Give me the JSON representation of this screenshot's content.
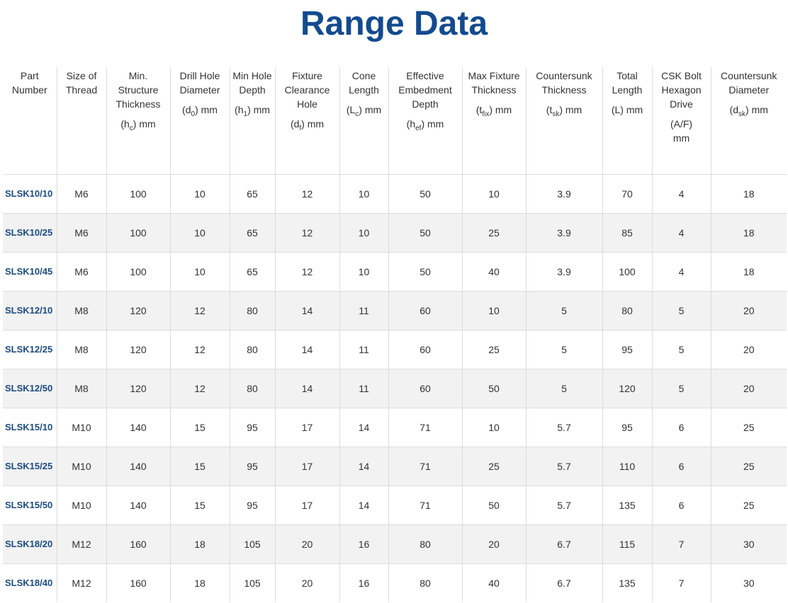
{
  "title": "Range Data",
  "table": {
    "headers": [
      {
        "name": "Part Number"
      },
      {
        "name": "Size of Thread"
      },
      {
        "name": "Min. Structure Thickness",
        "unit": {
          "pre": "(h",
          "sub": "c",
          "post": ") mm"
        }
      },
      {
        "name": "Drill Hole Diameter",
        "unit": {
          "pre": "(d",
          "sub": "0",
          "post": ") mm"
        }
      },
      {
        "name": "Min Hole Depth",
        "unit": {
          "pre": "(h",
          "sub": "1",
          "post": ") mm"
        }
      },
      {
        "name": "Fixture Clearance Hole",
        "unit": {
          "pre": "(d",
          "sub": "f",
          "post": ") mm"
        }
      },
      {
        "name": "Cone Length",
        "unit": {
          "pre": "(L",
          "sub": "c",
          "post": ") mm"
        }
      },
      {
        "name": "Effective Embedment Depth",
        "unit": {
          "pre": "(h",
          "sub": "ef",
          "post": ") mm"
        }
      },
      {
        "name": "Max Fixture Thickness",
        "unit": {
          "pre": "(t",
          "sub": "fix",
          "post": ") mm"
        }
      },
      {
        "name": "Countersunk Thickness",
        "unit": {
          "pre": "(t",
          "sub": "sk",
          "post": ") mm"
        }
      },
      {
        "name": "Total Length",
        "unit": {
          "pre": "(L) mm"
        }
      },
      {
        "name": "CSK Bolt Hexagon Drive",
        "unit": {
          "pre": "(A/F)",
          "post": "mm"
        }
      },
      {
        "name": "Countersunk Diameter",
        "unit": {
          "pre": "(d",
          "sub": "sk",
          "post": ") mm"
        }
      }
    ],
    "rows": [
      [
        "SLSK10/10",
        "M6",
        100,
        10,
        65,
        12,
        10,
        50,
        10,
        3.9,
        70,
        4,
        18
      ],
      [
        "SLSK10/25",
        "M6",
        100,
        10,
        65,
        12,
        10,
        50,
        25,
        3.9,
        85,
        4,
        18
      ],
      [
        "SLSK10/45",
        "M6",
        100,
        10,
        65,
        12,
        10,
        50,
        40,
        3.9,
        100,
        4,
        18
      ],
      [
        "SLSK12/10",
        "M8",
        120,
        12,
        80,
        14,
        11,
        60,
        10,
        5,
        80,
        5,
        20
      ],
      [
        "SLSK12/25",
        "M8",
        120,
        12,
        80,
        14,
        11,
        60,
        25,
        5,
        95,
        5,
        20
      ],
      [
        "SLSK12/50",
        "M8",
        120,
        12,
        80,
        14,
        11,
        60,
        50,
        5,
        120,
        5,
        20
      ],
      [
        "SLSK15/10",
        "M10",
        140,
        15,
        95,
        17,
        14,
        71,
        10,
        5.7,
        95,
        6,
        25
      ],
      [
        "SLSK15/25",
        "M10",
        140,
        15,
        95,
        17,
        14,
        71,
        25,
        5.7,
        110,
        6,
        25
      ],
      [
        "SLSK15/50",
        "M10",
        140,
        15,
        95,
        17,
        14,
        71,
        50,
        5.7,
        135,
        6,
        25
      ],
      [
        "SLSK18/20",
        "M12",
        160,
        18,
        105,
        20,
        16,
        80,
        20,
        6.7,
        115,
        7,
        30
      ],
      [
        "SLSK18/40",
        "M12",
        160,
        18,
        105,
        20,
        16,
        80,
        40,
        6.7,
        135,
        7,
        30
      ]
    ]
  }
}
